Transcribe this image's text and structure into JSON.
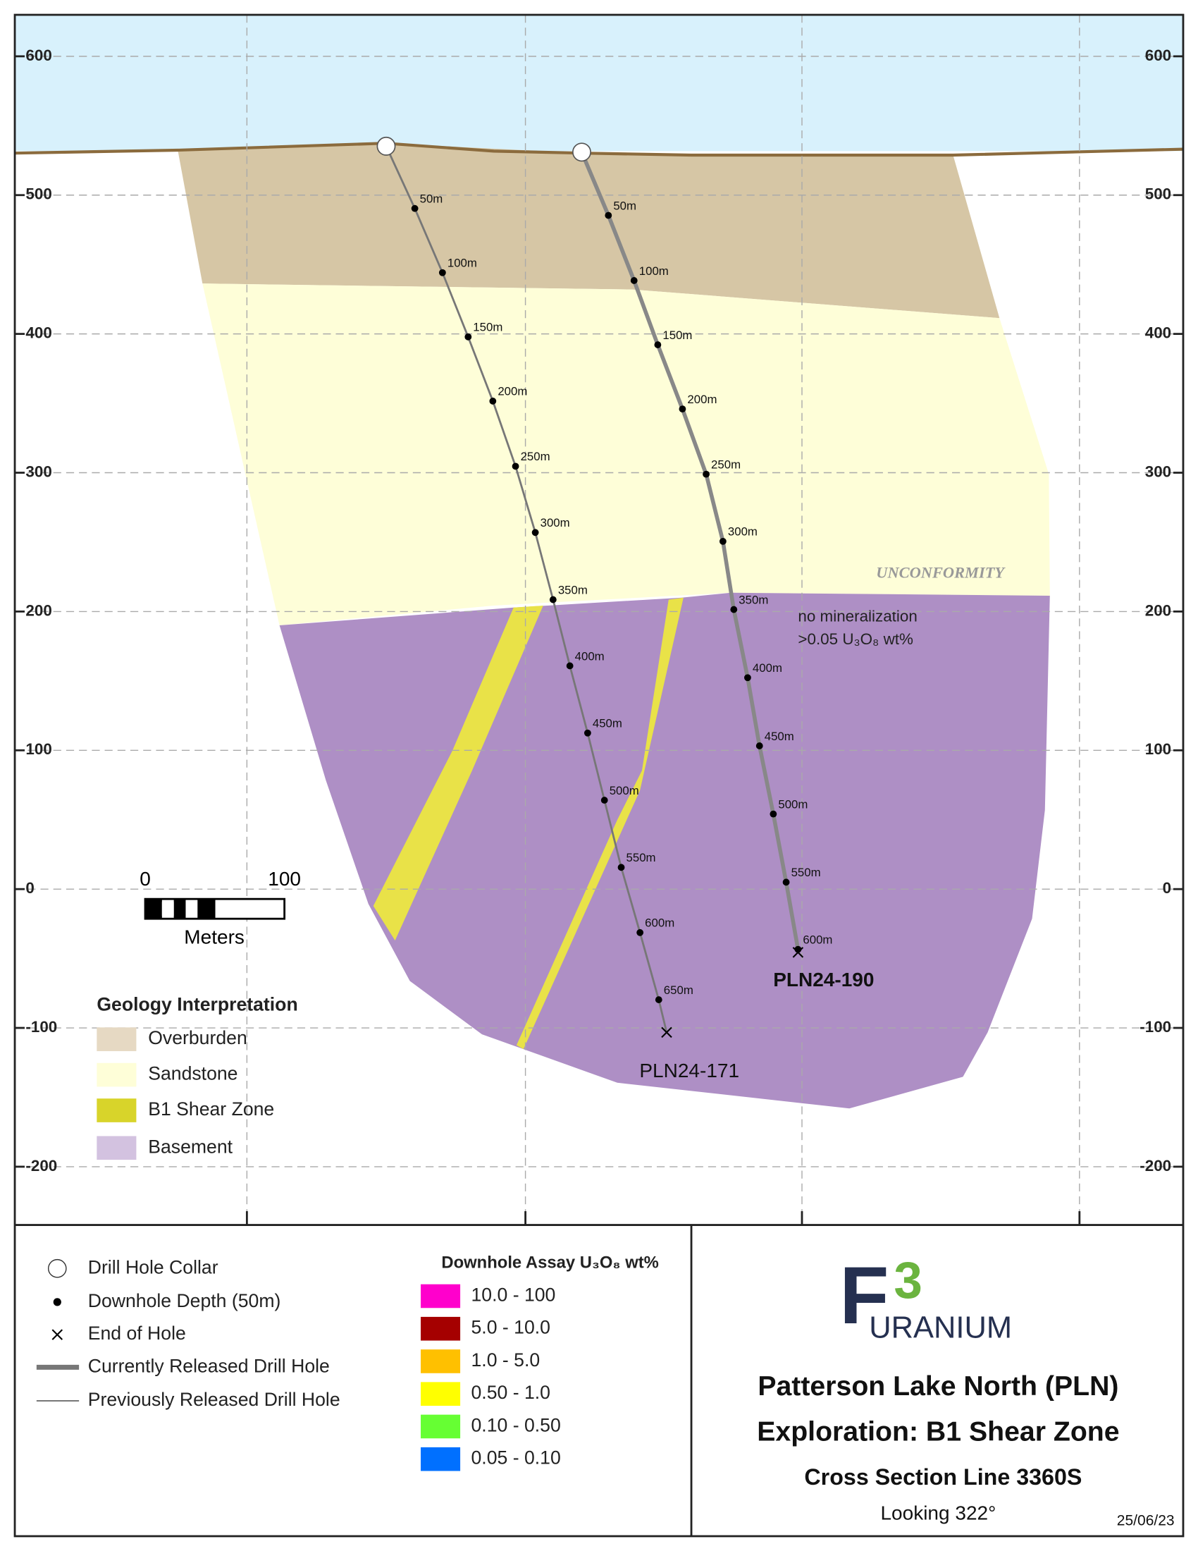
{
  "section": {
    "elevation_ticks": [
      600,
      500,
      400,
      300,
      200,
      100,
      0,
      -100,
      -200
    ],
    "unconformity_label": "UNCONFORMITY",
    "note": [
      "no mineralization",
      ">0.05 U₃O₈ wt%"
    ],
    "scale_bar": {
      "labels": [
        "0",
        "100"
      ],
      "unit": "Meters"
    },
    "drill_holes": [
      {
        "name": "PLN24-171",
        "depth_labels": [
          "50m",
          "100m",
          "150m",
          "200m",
          "250m",
          "300m",
          "350m",
          "400m",
          "450m",
          "500m",
          "550m",
          "600m",
          "650m"
        ]
      },
      {
        "name": "PLN24-190",
        "depth_labels": [
          "50m",
          "100m",
          "150m",
          "200m",
          "250m",
          "300m",
          "350m",
          "400m",
          "450m",
          "500m",
          "550m",
          "600m"
        ]
      }
    ]
  },
  "geology_legend": {
    "title": "Geology Interpretation",
    "items": [
      "Overburden",
      "Sandstone",
      "B1 Shear Zone",
      "Basement"
    ]
  },
  "symbol_legend": {
    "items": [
      "Drill Hole Collar",
      "Downhole Depth (50m)",
      "End of Hole",
      "Currently Released Drill Hole",
      "Previously Released Drill Hole"
    ]
  },
  "assay_legend": {
    "title": "Downhole Assay U₃O₈ wt%",
    "items": [
      "10.0 - 100",
      "5.0 - 10.0",
      "1.0 - 5.0",
      "0.50 - 1.0",
      "0.10 - 0.50",
      "0.05 - 0.10"
    ]
  },
  "logo": {
    "letter": "F",
    "number": "3",
    "name": "URANIUM"
  },
  "title_block": {
    "lines": [
      "Patterson Lake North (PLN)",
      "Exploration: B1 Shear Zone",
      "Cross Section Line 3360S"
    ],
    "view": "Looking 322°",
    "date": "25/06/23"
  }
}
